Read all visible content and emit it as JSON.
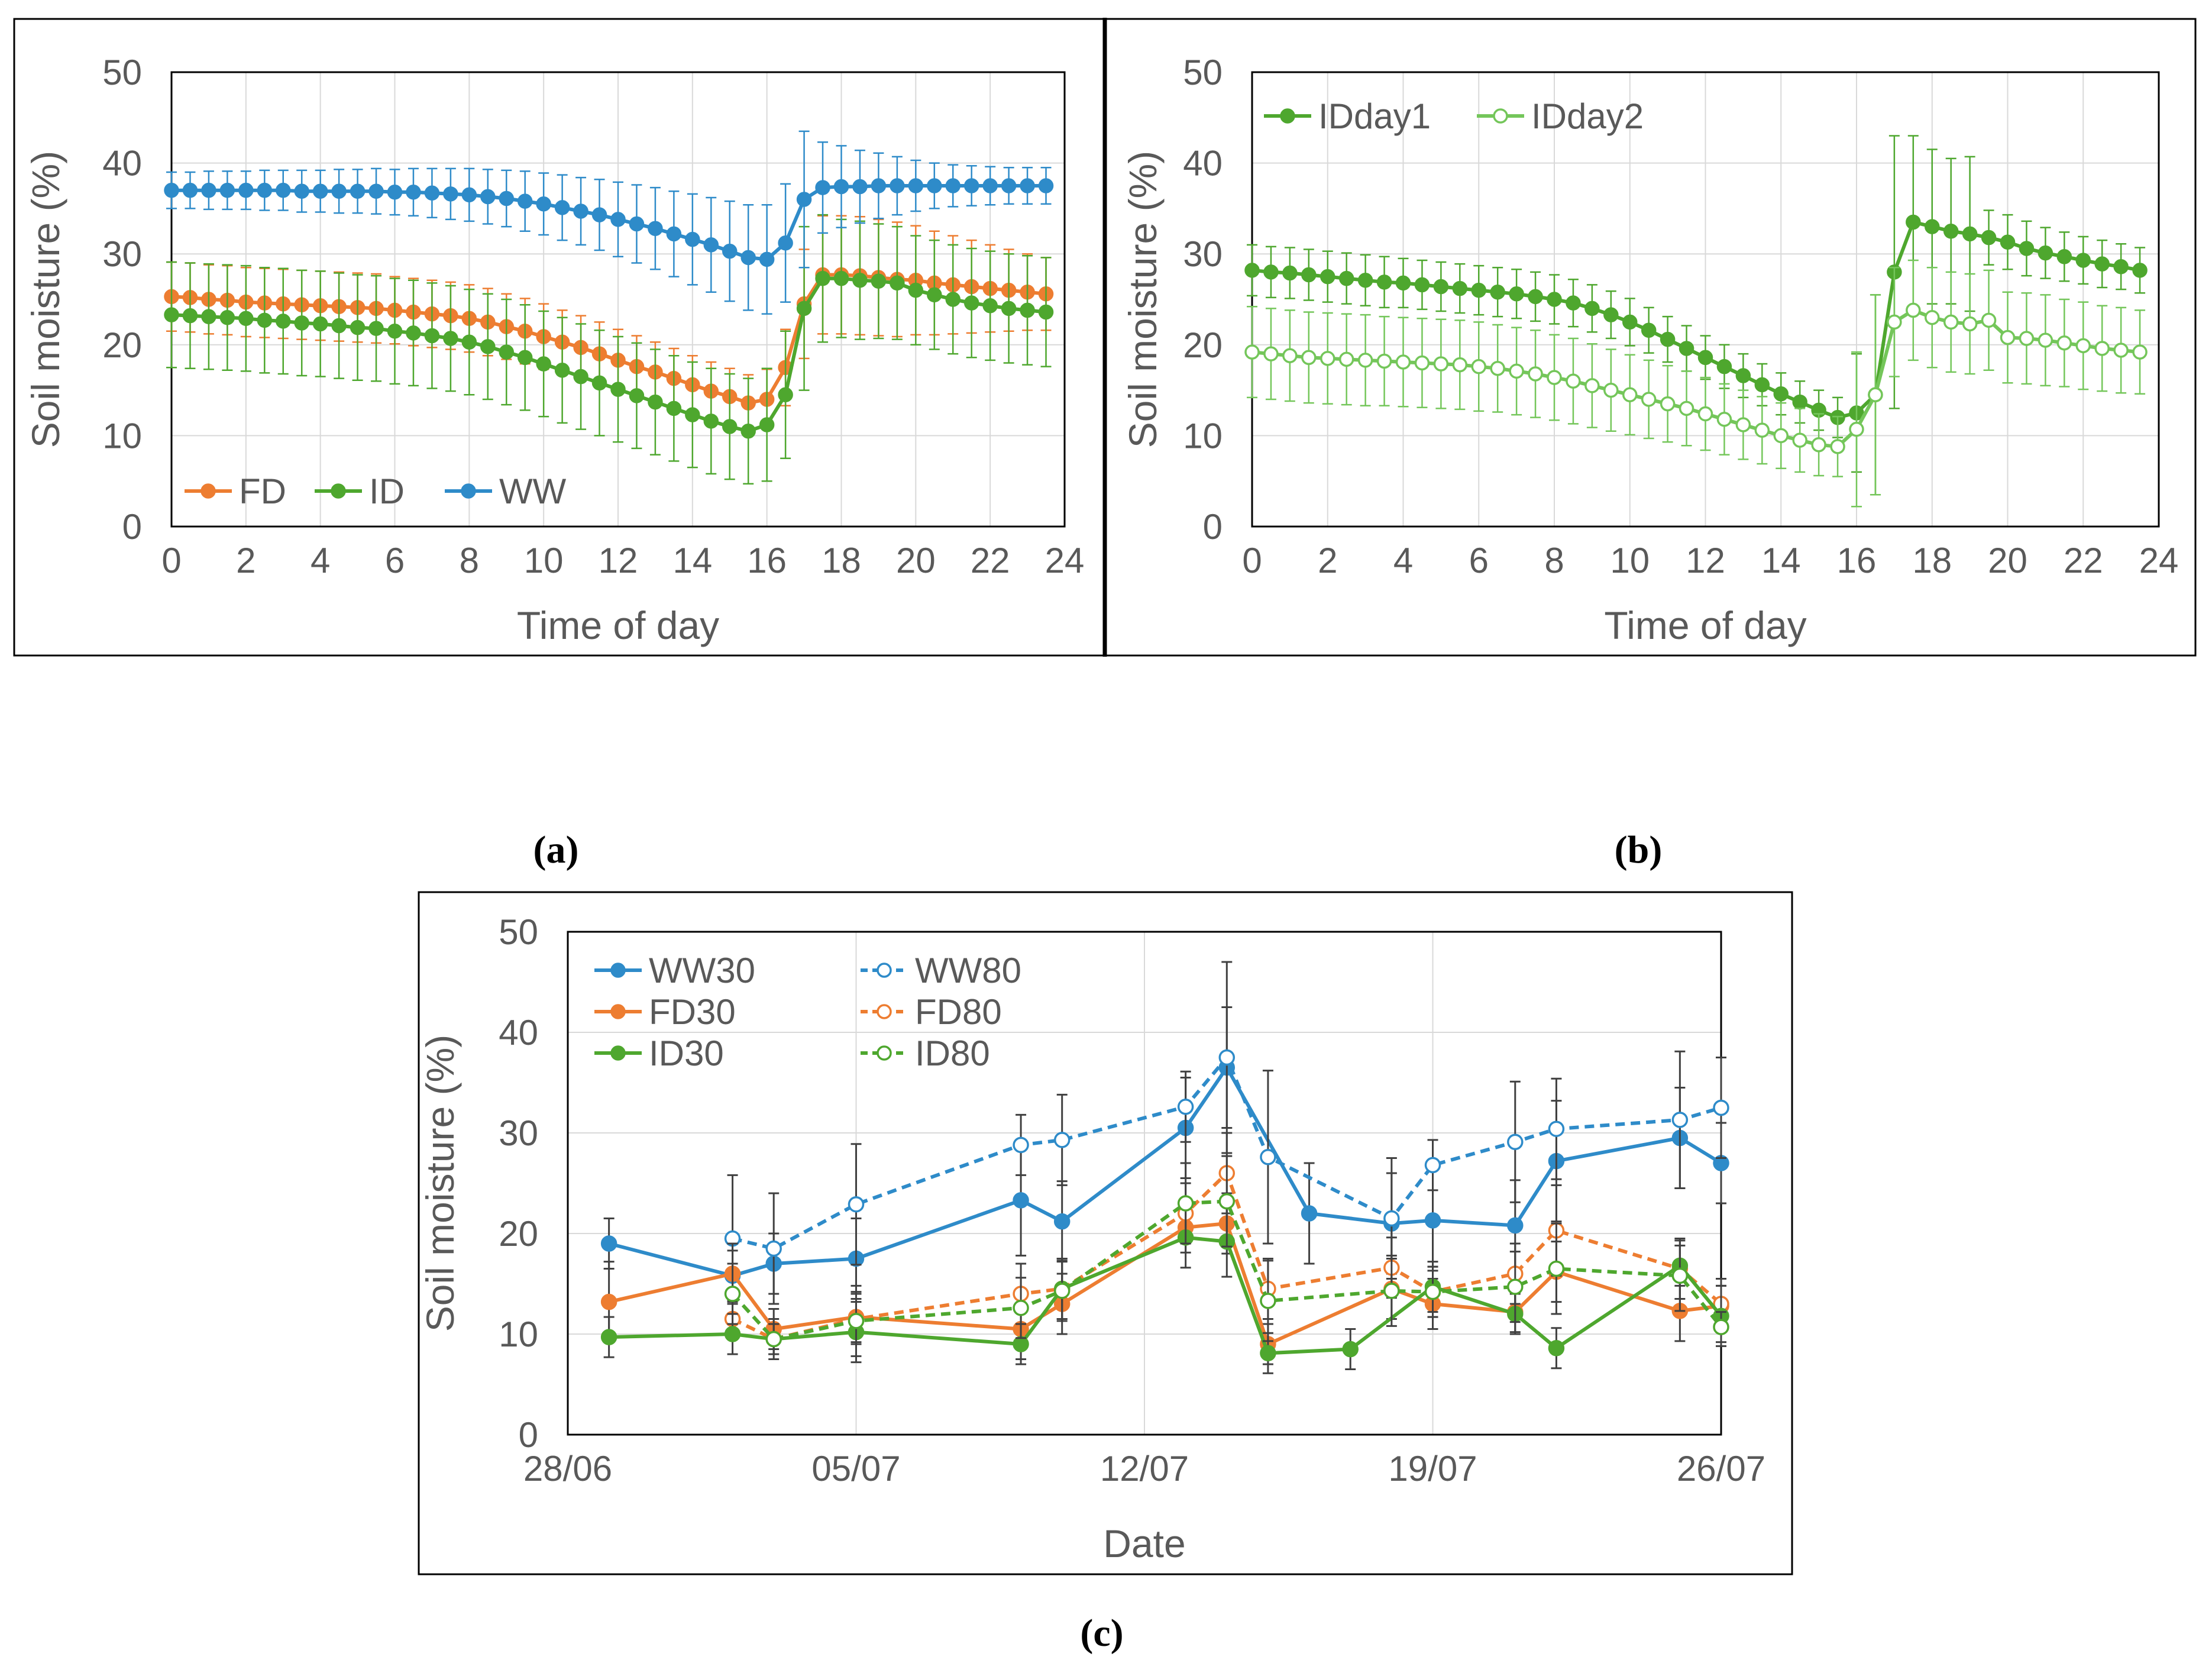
{
  "panels": {
    "a": {
      "label": "(a)"
    },
    "b": {
      "label": "(b)"
    },
    "c": {
      "label": "(c)"
    }
  },
  "chart_data": [
    {
      "id": "a",
      "type": "line",
      "title": "",
      "xlabel": "Time  of day",
      "ylabel": "Soil moisture  (%)",
      "xlim": [
        0,
        24
      ],
      "ylim": [
        0,
        50
      ],
      "x_ticks": [
        "0",
        "2",
        "4",
        "6",
        "8",
        "10",
        "12",
        "14",
        "16",
        "18",
        "20",
        "22",
        "24"
      ],
      "y_ticks": [
        "0",
        "10",
        "20",
        "30",
        "40",
        "50"
      ],
      "grid": true,
      "legend_position": "bottom-left",
      "x": [
        0,
        0.5,
        1,
        1.5,
        2,
        2.5,
        3,
        3.5,
        4,
        4.5,
        5,
        5.5,
        6,
        6.5,
        7,
        7.5,
        8,
        8.5,
        9,
        9.5,
        10,
        10.5,
        11,
        11.5,
        12,
        12.5,
        13,
        13.5,
        14,
        14.5,
        15,
        15.5,
        16,
        16.5,
        17,
        17.5,
        18,
        18.5,
        19,
        19.5,
        20,
        20.5,
        21,
        21.5,
        22,
        22.5,
        23,
        23.5
      ],
      "series": [
        {
          "name": "FD",
          "color": "#ED7D31",
          "values": [
            25.3,
            25.2,
            25.0,
            24.9,
            24.7,
            24.6,
            24.5,
            24.4,
            24.3,
            24.2,
            24.1,
            24.0,
            23.8,
            23.6,
            23.4,
            23.2,
            22.9,
            22.5,
            22.0,
            21.5,
            20.9,
            20.3,
            19.7,
            19.0,
            18.3,
            17.6,
            17.0,
            16.3,
            15.6,
            14.9,
            14.3,
            13.6,
            14.0,
            17.5,
            24.5,
            27.7,
            27.7,
            27.6,
            27.4,
            27.2,
            27.1,
            26.8,
            26.6,
            26.4,
            26.2,
            26.0,
            25.8,
            25.6
          ],
          "error": [
            3.8,
            3.8,
            3.8,
            3.8,
            3.8,
            3.8,
            3.8,
            3.8,
            3.8,
            3.8,
            3.8,
            3.8,
            3.7,
            3.7,
            3.7,
            3.7,
            3.7,
            3.7,
            3.6,
            3.6,
            3.6,
            3.5,
            3.5,
            3.5,
            3.4,
            3.4,
            3.3,
            3.3,
            3.2,
            3.2,
            3.1,
            3.1,
            3.3,
            4.2,
            6.0,
            6.5,
            6.5,
            6.5,
            6.4,
            6.3,
            6.0,
            5.7,
            5.4,
            5.1,
            4.8,
            4.5,
            4.2,
            4.0
          ]
        },
        {
          "name": "ID",
          "color": "#4EA72E",
          "values": [
            23.3,
            23.2,
            23.1,
            23.0,
            22.9,
            22.7,
            22.6,
            22.4,
            22.3,
            22.1,
            21.9,
            21.8,
            21.5,
            21.3,
            21.0,
            20.7,
            20.3,
            19.8,
            19.2,
            18.6,
            17.9,
            17.2,
            16.5,
            15.8,
            15.1,
            14.4,
            13.7,
            13.0,
            12.3,
            11.6,
            11.0,
            10.5,
            11.2,
            14.5,
            24.0,
            27.3,
            27.3,
            27.1,
            27.0,
            26.8,
            26.0,
            25.5,
            25.0,
            24.6,
            24.3,
            24.0,
            23.8,
            23.6
          ],
          "error": [
            5.8,
            5.8,
            5.8,
            5.8,
            5.8,
            5.8,
            5.8,
            5.8,
            5.8,
            5.8,
            5.8,
            5.8,
            5.8,
            5.8,
            5.8,
            5.8,
            5.8,
            5.8,
            5.8,
            5.8,
            5.8,
            5.8,
            5.8,
            5.8,
            5.8,
            5.8,
            5.8,
            5.8,
            5.8,
            5.8,
            5.8,
            5.8,
            6.2,
            7.0,
            9.0,
            7.0,
            6.5,
            6.5,
            6.3,
            6.2,
            6.0,
            6.0,
            6.0,
            6.0,
            6.0,
            6.0,
            6.0,
            6.0
          ]
        },
        {
          "name": "WW",
          "color": "#2E8BC9",
          "values": [
            37.0,
            37.0,
            37.0,
            37.0,
            37.0,
            37.0,
            37.0,
            36.9,
            36.9,
            36.9,
            36.9,
            36.9,
            36.8,
            36.8,
            36.7,
            36.6,
            36.5,
            36.3,
            36.1,
            35.8,
            35.5,
            35.1,
            34.7,
            34.3,
            33.8,
            33.3,
            32.8,
            32.2,
            31.6,
            31.0,
            30.3,
            29.6,
            29.4,
            31.2,
            36.0,
            37.3,
            37.4,
            37.4,
            37.5,
            37.5,
            37.5,
            37.5,
            37.5,
            37.5,
            37.5,
            37.5,
            37.5,
            37.5
          ],
          "error": [
            2.0,
            2.0,
            2.1,
            2.1,
            2.1,
            2.2,
            2.2,
            2.3,
            2.3,
            2.4,
            2.4,
            2.5,
            2.5,
            2.6,
            2.7,
            2.8,
            2.9,
            3.0,
            3.1,
            3.3,
            3.4,
            3.6,
            3.7,
            3.9,
            4.1,
            4.3,
            4.5,
            4.7,
            5.0,
            5.2,
            5.5,
            5.8,
            6.0,
            6.5,
            7.5,
            5.0,
            4.5,
            4.0,
            3.6,
            3.2,
            2.8,
            2.5,
            2.3,
            2.2,
            2.1,
            2.0,
            2.0,
            2.0
          ]
        }
      ]
    },
    {
      "id": "b",
      "type": "line",
      "title": "",
      "xlabel": "Time  of day",
      "ylabel": "Soil moisture  (%)",
      "xlim": [
        0,
        24
      ],
      "ylim": [
        0,
        50
      ],
      "x_ticks": [
        "0",
        "2",
        "4",
        "6",
        "8",
        "10",
        "12",
        "14",
        "16",
        "18",
        "20",
        "22",
        "24"
      ],
      "y_ticks": [
        "0",
        "10",
        "20",
        "30",
        "40",
        "50"
      ],
      "grid": true,
      "legend_position": "top-left",
      "x": [
        0,
        0.5,
        1,
        1.5,
        2,
        2.5,
        3,
        3.5,
        4,
        4.5,
        5,
        5.5,
        6,
        6.5,
        7,
        7.5,
        8,
        8.5,
        9,
        9.5,
        10,
        10.5,
        11,
        11.5,
        12,
        12.5,
        13,
        13.5,
        14,
        14.5,
        15,
        15.5,
        16,
        16.5,
        17,
        17.5,
        18,
        18.5,
        19,
        19.5,
        20,
        20.5,
        21,
        21.5,
        22,
        22.5,
        23,
        23.5
      ],
      "series": [
        {
          "name": "IDday1",
          "color": "#4EA72E",
          "marker": "filled",
          "values": [
            28.2,
            28.0,
            27.9,
            27.7,
            27.5,
            27.3,
            27.1,
            26.9,
            26.8,
            26.6,
            26.4,
            26.2,
            26.0,
            25.8,
            25.6,
            25.3,
            25.0,
            24.6,
            24.0,
            23.3,
            22.5,
            21.6,
            20.6,
            19.6,
            18.6,
            17.6,
            16.6,
            15.6,
            14.6,
            13.7,
            12.8,
            12.0,
            12.5,
            14.5,
            28.0,
            33.5,
            33.0,
            32.5,
            32.2,
            31.8,
            31.3,
            30.6,
            30.1,
            29.7,
            29.3,
            28.9,
            28.6,
            28.2
          ],
          "error": [
            2.8,
            2.8,
            2.8,
            2.8,
            2.8,
            2.8,
            2.8,
            2.8,
            2.7,
            2.7,
            2.7,
            2.7,
            2.7,
            2.7,
            2.7,
            2.7,
            2.7,
            2.6,
            2.6,
            2.6,
            2.6,
            2.5,
            2.5,
            2.5,
            2.4,
            2.4,
            2.4,
            2.3,
            2.3,
            2.3,
            2.2,
            2.2,
            6.5,
            11.0,
            15.0,
            9.5,
            8.5,
            8.0,
            8.5,
            3.0,
            3.0,
            3.0,
            2.8,
            2.7,
            2.6,
            2.6,
            2.5,
            2.5
          ]
        },
        {
          "name": "IDday2",
          "color": "#74C65A",
          "marker": "open",
          "values": [
            19.2,
            19.0,
            18.8,
            18.6,
            18.5,
            18.4,
            18.3,
            18.2,
            18.1,
            18.0,
            17.9,
            17.8,
            17.6,
            17.4,
            17.1,
            16.8,
            16.4,
            16.0,
            15.5,
            15.0,
            14.5,
            14.0,
            13.5,
            13.0,
            12.4,
            11.8,
            11.2,
            10.6,
            10.0,
            9.5,
            9.0,
            8.8,
            10.7,
            14.5,
            22.5,
            23.8,
            23.0,
            22.5,
            22.3,
            22.7,
            20.8,
            20.7,
            20.5,
            20.2,
            19.9,
            19.6,
            19.4,
            19.2
          ],
          "error": [
            5.0,
            5.0,
            5.0,
            5.0,
            5.0,
            5.0,
            5.0,
            4.9,
            4.9,
            4.9,
            4.9,
            4.9,
            4.9,
            4.8,
            4.8,
            4.8,
            4.7,
            4.7,
            4.6,
            4.5,
            4.4,
            4.3,
            4.2,
            4.1,
            4.0,
            3.9,
            3.8,
            3.7,
            3.6,
            3.5,
            3.4,
            3.3,
            8.5,
            11.0,
            6.0,
            5.5,
            5.5,
            5.5,
            5.5,
            5.5,
            5.0,
            5.0,
            5.0,
            4.8,
            4.8,
            4.7,
            4.7,
            4.6
          ]
        }
      ]
    },
    {
      "id": "c",
      "type": "line",
      "title": "",
      "xlabel": "Date",
      "ylabel": "Soil moisture  (%)",
      "xlim": [
        0,
        28
      ],
      "x_unit": "days since 28/06",
      "ylim": [
        0,
        50
      ],
      "x_ticks": [
        "28/06",
        "05/07",
        "12/07",
        "19/07",
        "26/07"
      ],
      "y_ticks": [
        "0",
        "10",
        "20",
        "30",
        "40",
        "50"
      ],
      "grid": true,
      "legend_position": "top-left",
      "series": [
        {
          "name": "WW30",
          "color": "#2E8BC9",
          "dash": "solid",
          "marker": "filled",
          "x": [
            1,
            4,
            5,
            7,
            11,
            12,
            15,
            16,
            18,
            20,
            21,
            23,
            24,
            27,
            28
          ],
          "values": [
            19.0,
            15.8,
            17.0,
            17.5,
            23.3,
            21.2,
            30.5,
            36.5,
            22.0,
            21.0,
            21.3,
            20.8,
            27.2,
            29.5,
            27.0
          ],
          "error": [
            2.5,
            2.5,
            3.0,
            4.0,
            5.5,
            4.0,
            5.0,
            6.0,
            5.0,
            5.0,
            5.0,
            4.5,
            6.0,
            5.0,
            4.0
          ]
        },
        {
          "name": "WW80",
          "color": "#2E8BC9",
          "dash": "dashed",
          "marker": "open",
          "x": [
            4,
            5,
            7,
            11,
            12,
            15,
            16,
            17,
            20,
            21,
            23,
            24,
            27,
            28
          ],
          "values": [
            19.5,
            18.5,
            22.9,
            28.8,
            29.3,
            32.6,
            37.5,
            27.6,
            21.5,
            26.8,
            29.1,
            30.4,
            31.3,
            32.5
          ],
          "error": [
            6.3,
            5.5,
            6.0,
            3.0,
            4.5,
            3.5,
            9.5,
            8.6,
            6.0,
            2.5,
            6.0,
            5.0,
            6.8,
            5.0
          ]
        },
        {
          "name": "FD30",
          "color": "#ED7D31",
          "dash": "solid",
          "marker": "filled",
          "x": [
            1,
            4,
            5,
            7,
            11,
            12,
            15,
            16,
            17,
            20,
            21,
            23,
            24,
            27,
            28
          ],
          "values": [
            13.2,
            16.0,
            10.5,
            11.7,
            10.5,
            13.0,
            20.6,
            21.0,
            9.0,
            14.5,
            13.0,
            12.2,
            16.2,
            12.3,
            12.8
          ],
          "error": [
            4.0,
            3.0,
            2.0,
            2.5,
            3.0,
            3.0,
            2.5,
            3.0,
            2.0,
            3.0,
            2.5,
            2.0,
            3.0,
            3.0,
            2.0
          ]
        },
        {
          "name": "FD80",
          "color": "#ED7D31",
          "dash": "dashed",
          "marker": "open",
          "x": [
            4,
            5,
            7,
            11,
            12,
            15,
            16,
            17,
            20,
            21,
            23,
            24,
            27,
            28
          ],
          "values": [
            11.5,
            9.5,
            11.5,
            14.0,
            14.5,
            22.0,
            26.0,
            14.5,
            16.6,
            14.2,
            16.0,
            20.3,
            16.5,
            13.0
          ],
          "error": [
            2.0,
            2.0,
            2.5,
            3.0,
            3.0,
            3.0,
            4.0,
            3.0,
            3.0,
            2.5,
            3.0,
            4.5,
            3.0,
            2.5
          ]
        },
        {
          "name": "ID30",
          "color": "#4EA72E",
          "dash": "solid",
          "marker": "filled",
          "x": [
            1,
            4,
            5,
            7,
            11,
            12,
            15,
            16,
            17,
            19,
            21,
            23,
            24,
            27,
            28
          ],
          "values": [
            9.7,
            10.0,
            9.5,
            10.2,
            9.0,
            14.5,
            19.6,
            19.2,
            8.1,
            8.5,
            14.7,
            12.0,
            8.6,
            16.8,
            11.8
          ],
          "error": [
            2.0,
            2.0,
            1.5,
            3.0,
            2.0,
            3.0,
            3.0,
            3.5,
            2.0,
            2.0,
            2.5,
            2.0,
            2.0,
            2.0,
            3.0
          ]
        },
        {
          "name": "ID80",
          "color": "#4EA72E",
          "dash": "dashed",
          "marker": "open",
          "x": [
            4,
            5,
            7,
            11,
            12,
            15,
            16,
            17,
            20,
            21,
            23,
            24,
            27,
            28
          ],
          "values": [
            14.0,
            9.5,
            11.3,
            12.6,
            14.3,
            23.0,
            23.2,
            13.3,
            14.3,
            14.2,
            14.7,
            16.5,
            15.8,
            10.7
          ],
          "error": [
            3.0,
            1.5,
            3.5,
            3.0,
            3.0,
            4.0,
            4.5,
            4.0,
            3.5,
            2.5,
            3.5,
            4.5,
            3.5,
            1.5
          ]
        }
      ]
    }
  ]
}
